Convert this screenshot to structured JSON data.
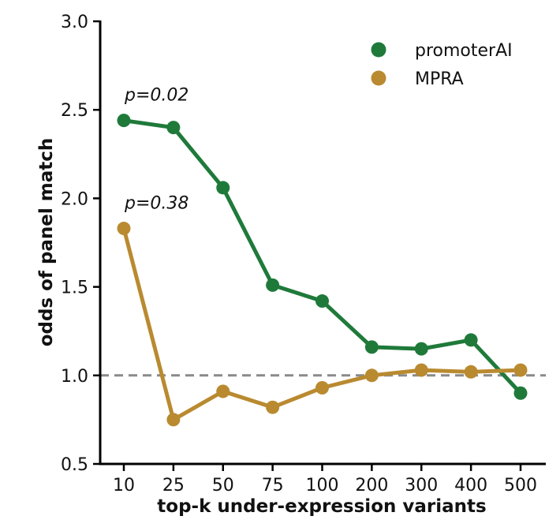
{
  "chart_data": {
    "type": "line",
    "xlabel": "top-k under-expression variants",
    "ylabel": "odds of panel match",
    "categories": [
      "10",
      "25",
      "50",
      "75",
      "100",
      "200",
      "300",
      "400",
      "500"
    ],
    "ylim": [
      0.5,
      3.0
    ],
    "yticks": [
      "0.5",
      "1.0",
      "1.5",
      "2.0",
      "2.5",
      "3.0"
    ],
    "reference_line": {
      "y": 1.0,
      "style": "dashed",
      "color": "#8a8a8a"
    },
    "legend_position": "top-right",
    "series": [
      {
        "name": "promoterAI",
        "color": "#1f7a3a",
        "values": [
          2.44,
          2.4,
          2.06,
          1.51,
          1.42,
          1.16,
          1.15,
          1.2,
          0.9
        ]
      },
      {
        "name": "MPRA",
        "color": "#b98a30",
        "values": [
          1.83,
          0.75,
          0.91,
          0.82,
          0.93,
          1.0,
          1.03,
          1.02,
          1.03
        ]
      }
    ],
    "annotations": [
      {
        "text": "p=0.02",
        "series": 0,
        "category_index": 0
      },
      {
        "text": "p=0.38",
        "series": 1,
        "category_index": 0
      }
    ]
  }
}
